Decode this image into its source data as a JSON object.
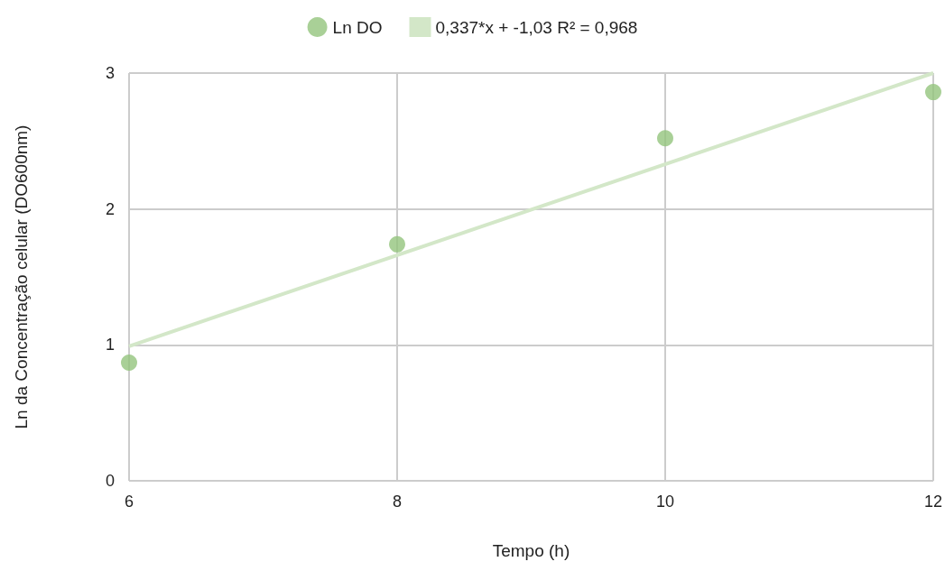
{
  "chart_data": {
    "type": "scatter",
    "xlabel": "Tempo (h)",
    "ylabel": "Ln da Concentração celular (DO600nm)",
    "x": [
      6,
      8,
      10,
      12
    ],
    "series": [
      {
        "name": "Ln DO",
        "color": "#93c47d",
        "values": [
          0.87,
          1.74,
          2.52,
          2.86
        ],
        "marker": "circle"
      },
      {
        "name": "0,337*x + -1,03 R² = 0,968",
        "type": "line",
        "color": "#d3e7c8",
        "x": [
          6,
          12
        ],
        "values": [
          0.99,
          3.0
        ],
        "marker": "none"
      }
    ],
    "xlim": [
      6,
      12
    ],
    "xticks": [
      6,
      8,
      10,
      12
    ],
    "ylim": [
      0,
      3
    ],
    "yticks": [
      0,
      1,
      2,
      3
    ],
    "grid": true,
    "legend": "top"
  }
}
